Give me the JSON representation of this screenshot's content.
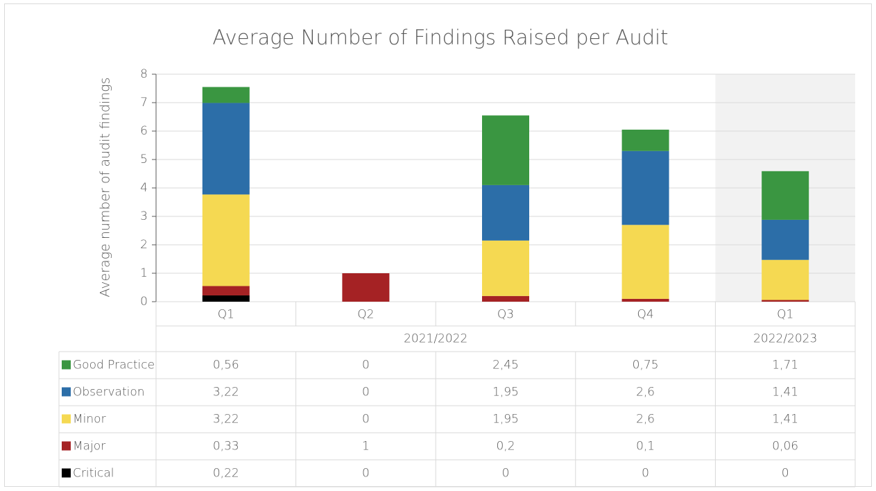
{
  "chart_data": {
    "type": "stacked_bar",
    "title": "Average Number of Findings Raised per Audit",
    "y_label": "Average number of audit findings",
    "categories": [
      "Q1",
      "Q2",
      "Q3",
      "Q4",
      "Q1"
    ],
    "groups": [
      {
        "name": "2021/2022",
        "span": 4
      },
      {
        "name": "2022/2023",
        "span": 1
      }
    ],
    "ylim": [
      0,
      8
    ],
    "yticks": [
      0,
      1,
      2,
      3,
      4,
      5,
      6,
      7,
      8
    ],
    "series": [
      {
        "name": "Critical",
        "color": "#000000",
        "values": [
          0.22,
          0,
          0,
          0,
          0
        ],
        "value_labels": [
          "0,22",
          "0",
          "0",
          "0",
          "0"
        ]
      },
      {
        "name": "Major",
        "color": "#a52224",
        "values": [
          0.33,
          1,
          0.2,
          0.1,
          0.06
        ],
        "value_labels": [
          "0,33",
          "1",
          "0,2",
          "0,1",
          "0,06"
        ]
      },
      {
        "name": "Minor",
        "color": "#f5d952",
        "values": [
          3.22,
          0,
          1.95,
          2.6,
          1.41
        ],
        "value_labels": [
          "3,22",
          "0",
          "1,95",
          "2,6",
          "1,41"
        ]
      },
      {
        "name": "Observation",
        "color": "#2c6ea8",
        "values": [
          3.22,
          0,
          1.95,
          2.6,
          1.41
        ],
        "value_labels": [
          "3,22",
          "0",
          "1,95",
          "2,6",
          "1,41"
        ]
      },
      {
        "name": "Good Practice",
        "color": "#3a9641",
        "values": [
          0.56,
          0,
          2.45,
          0.75,
          1.71
        ],
        "value_labels": [
          "0,56",
          "0",
          "2,45",
          "0,75",
          "1,71"
        ]
      }
    ]
  }
}
